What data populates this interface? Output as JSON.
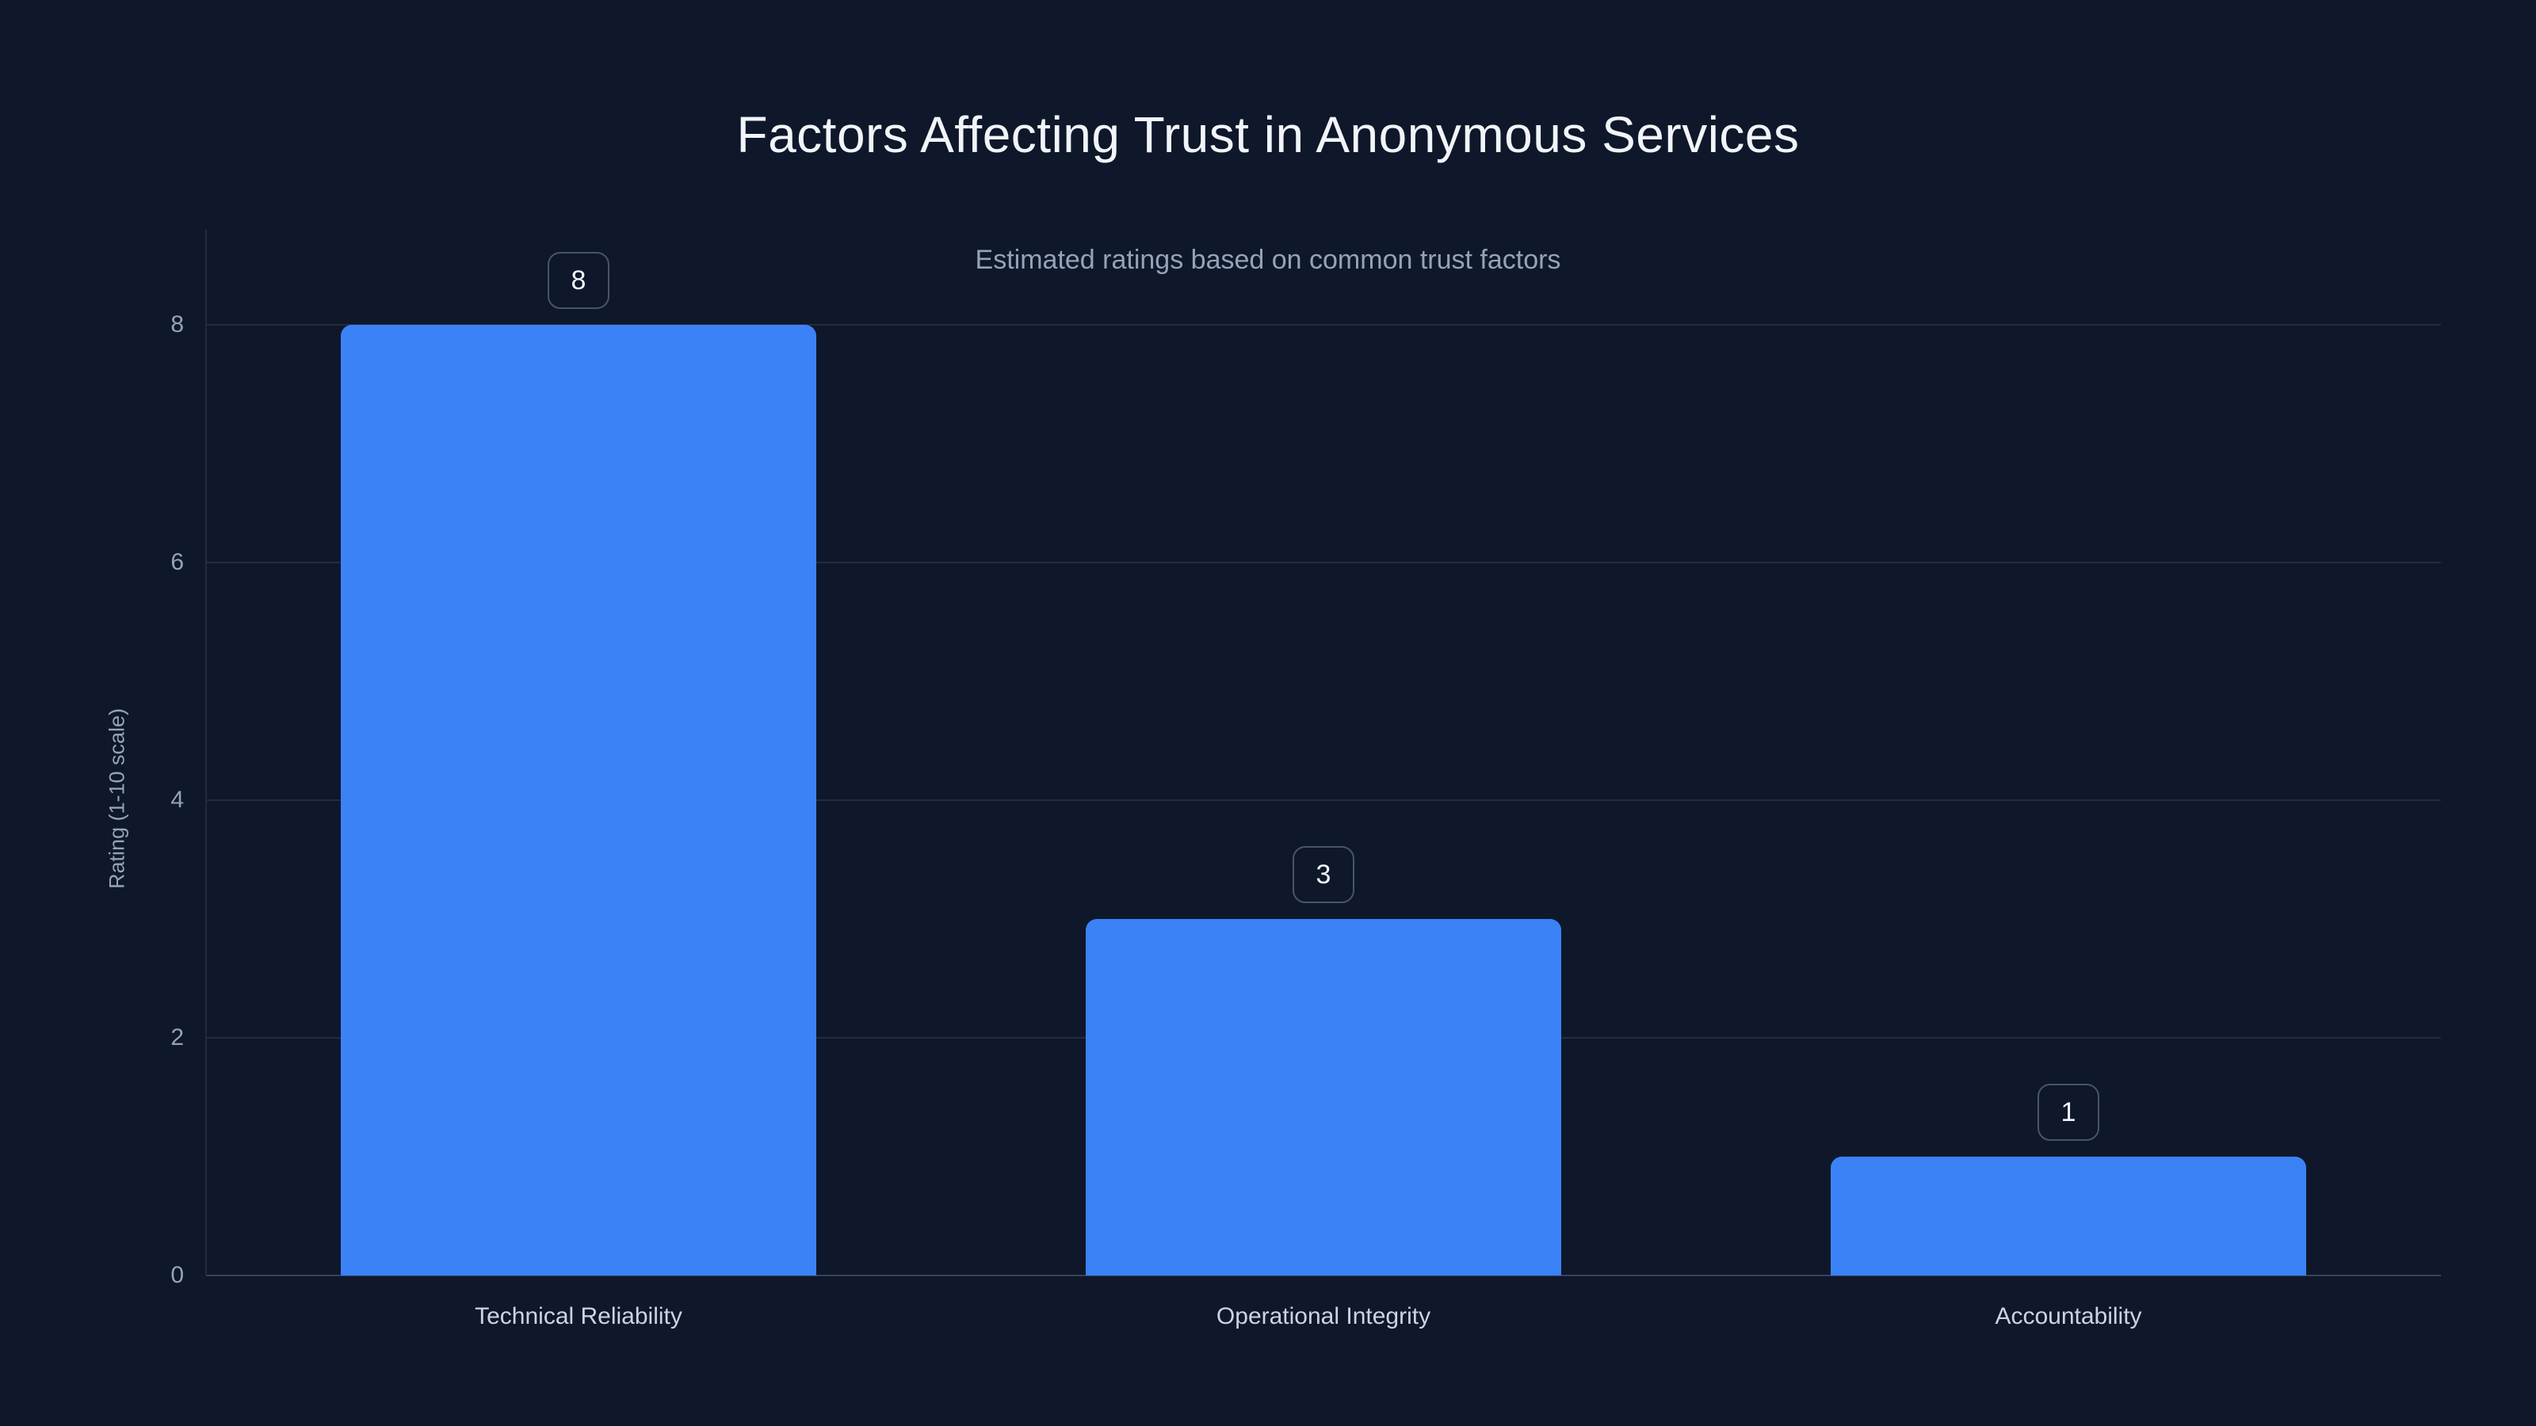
{
  "chart_data": {
    "type": "bar",
    "title": "Factors Affecting Trust in Anonymous Services",
    "subtitle": "Estimated ratings based on common trust factors",
    "categories": [
      "Technical Reliability",
      "Operational Integrity",
      "Accountability"
    ],
    "values": [
      8,
      3,
      1
    ],
    "value_labels": [
      "8",
      "3",
      "1"
    ],
    "xlabel": "",
    "ylabel": "Rating (1-10 scale)",
    "ylim": [
      0,
      8
    ],
    "yticks": [
      0,
      2,
      4,
      6,
      8
    ],
    "grid": "horizontal-only",
    "legend": "none",
    "colors": {
      "background": "#0f172a",
      "bar": "#3b82f6",
      "title": "#f1f5f9",
      "subtitle": "#94a3b8",
      "tick_label": "#94a3b8",
      "category_label": "#cbd5e1",
      "axis_title": "#94a3b8",
      "gridline": "#232c3f",
      "axis_line": "#36425a",
      "badge_border": "#475569",
      "badge_text": "#f1f5f9"
    }
  }
}
